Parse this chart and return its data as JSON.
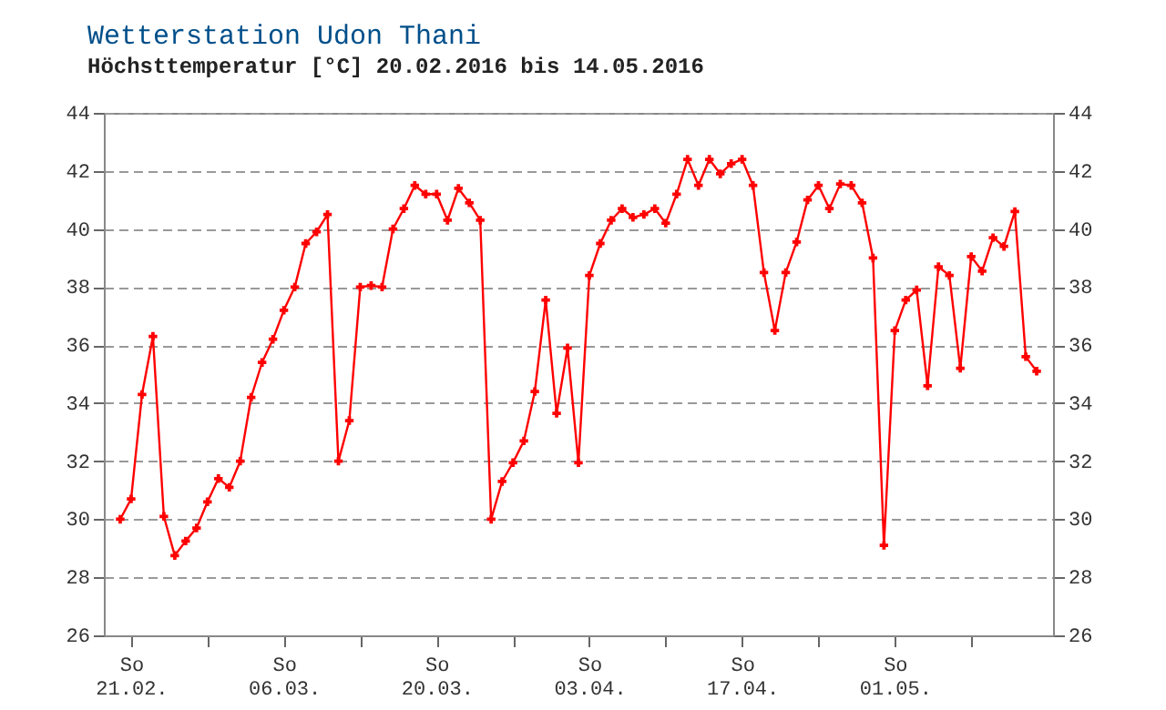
{
  "chart_data": {
    "type": "line",
    "title": "Wetterstation Udon Thani",
    "subtitle": "Höchsttemperatur [°C] 20.02.2016 bis 14.05.2016",
    "x": [
      "2016-02-20",
      "2016-02-21",
      "2016-02-22",
      "2016-02-23",
      "2016-02-24",
      "2016-02-25",
      "2016-02-26",
      "2016-02-27",
      "2016-02-28",
      "2016-02-29",
      "2016-03-01",
      "2016-03-02",
      "2016-03-03",
      "2016-03-04",
      "2016-03-05",
      "2016-03-06",
      "2016-03-07",
      "2016-03-08",
      "2016-03-09",
      "2016-03-10",
      "2016-03-11",
      "2016-03-12",
      "2016-03-13",
      "2016-03-14",
      "2016-03-15",
      "2016-03-16",
      "2016-03-17",
      "2016-03-18",
      "2016-03-19",
      "2016-03-20",
      "2016-03-21",
      "2016-03-22",
      "2016-03-23",
      "2016-03-24",
      "2016-03-25",
      "2016-03-26",
      "2016-03-27",
      "2016-03-28",
      "2016-03-29",
      "2016-03-30",
      "2016-03-31",
      "2016-04-01",
      "2016-04-02",
      "2016-04-03",
      "2016-04-04",
      "2016-04-05",
      "2016-04-06",
      "2016-04-07",
      "2016-04-08",
      "2016-04-09",
      "2016-04-10",
      "2016-04-11",
      "2016-04-12",
      "2016-04-13",
      "2016-04-14",
      "2016-04-15",
      "2016-04-16",
      "2016-04-17",
      "2016-04-18",
      "2016-04-19",
      "2016-04-20",
      "2016-04-21",
      "2016-04-22",
      "2016-04-23",
      "2016-04-24",
      "2016-04-25",
      "2016-04-26",
      "2016-04-27",
      "2016-04-28",
      "2016-04-29",
      "2016-04-30",
      "2016-05-01",
      "2016-05-02",
      "2016-05-03",
      "2016-05-04",
      "2016-05-05",
      "2016-05-06",
      "2016-05-07",
      "2016-05-08",
      "2016-05-09",
      "2016-05-10",
      "2016-05-11",
      "2016-05-12",
      "2016-05-13",
      "2016-05-14"
    ],
    "series": [
      {
        "color": "#ff0000",
        "values": [
          30.0,
          30.7,
          34.3,
          36.3,
          30.1,
          28.75,
          29.25,
          29.7,
          30.6,
          31.4,
          31.1,
          32.0,
          34.2,
          35.4,
          36.2,
          37.2,
          38.0,
          39.5,
          39.9,
          40.5,
          32.0,
          33.4,
          38.0,
          38.05,
          38.0,
          40.0,
          40.7,
          41.5,
          41.2,
          41.2,
          40.3,
          41.4,
          40.9,
          40.3,
          30.0,
          31.3,
          31.95,
          32.7,
          34.4,
          37.55,
          33.65,
          35.9,
          31.95,
          38.4,
          39.5,
          40.3,
          40.7,
          40.4,
          40.5,
          40.7,
          40.2,
          41.2,
          42.4,
          41.5,
          42.4,
          41.9,
          42.25,
          42.4,
          41.5,
          38.5,
          36.5,
          38.5,
          39.55,
          41.0,
          41.5,
          40.7,
          41.55,
          41.5,
          40.9,
          39.0,
          29.1,
          36.5,
          37.55,
          37.9,
          34.6,
          38.7,
          38.4,
          35.2,
          39.05,
          38.55,
          39.7,
          39.4,
          40.6,
          35.6,
          35.1
        ]
      }
    ],
    "xlim": [
      "2016-02-18T12:00",
      "2016-05-15T12:00"
    ],
    "xticks": [
      {
        "value": "2016-02-21",
        "label": "So 21.02."
      },
      {
        "value": "2016-02-28",
        "label": null
      },
      {
        "value": "2016-03-06",
        "label": "So 06.03."
      },
      {
        "value": "2016-03-13",
        "label": null
      },
      {
        "value": "2016-03-20",
        "label": "So 20.03."
      },
      {
        "value": "2016-03-27",
        "label": null
      },
      {
        "value": "2016-04-03",
        "label": "So 03.04."
      },
      {
        "value": "2016-04-10",
        "label": null
      },
      {
        "value": "2016-04-17",
        "label": "So 17.04."
      },
      {
        "value": "2016-04-24",
        "label": null
      },
      {
        "value": "2016-05-01",
        "label": "So 01.05."
      },
      {
        "value": "2016-05-08",
        "label": null
      }
    ],
    "ylim": [
      26,
      44
    ],
    "yticks": [
      26,
      28,
      30,
      32,
      34,
      36,
      38,
      40,
      42,
      44
    ],
    "y2lim": [
      26,
      44
    ],
    "y2ticks": [
      26,
      28,
      30,
      32,
      34,
      36,
      38,
      40,
      42,
      44
    ],
    "grid": "y",
    "marker": "cross",
    "line_style": "solid"
  }
}
